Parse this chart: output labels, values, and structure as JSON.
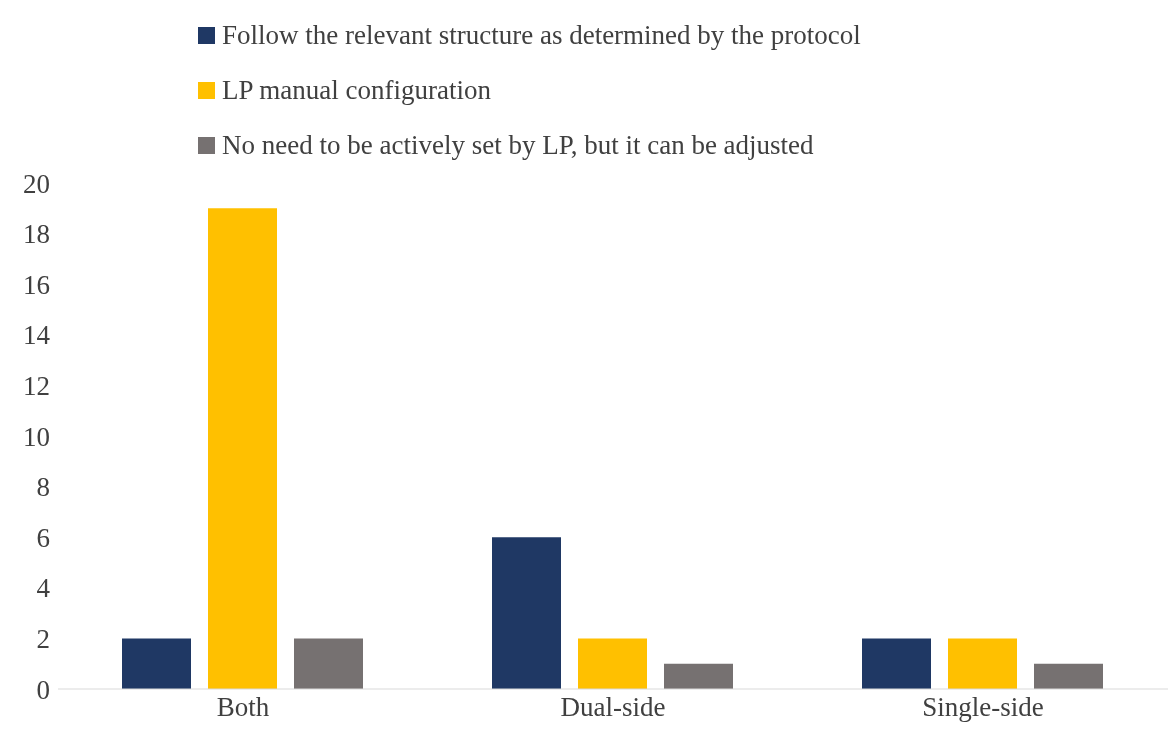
{
  "chart_data": {
    "type": "bar",
    "categories": [
      "Both",
      "Dual-side",
      "Single-side"
    ],
    "series": [
      {
        "name": "Follow the relevant structure as determined by the protocol",
        "color": "#1f3864",
        "values": [
          2,
          6,
          2
        ]
      },
      {
        "name": "LP manual configuration",
        "color": "#ffc000",
        "values": [
          19,
          2,
          2
        ]
      },
      {
        "name": "No need to be actively set by LP, but it can be adjusted",
        "color": "#767171",
        "values": [
          2,
          1,
          1
        ]
      }
    ],
    "ylim": [
      0,
      20
    ],
    "yticks": [
      0,
      2,
      4,
      6,
      8,
      10,
      12,
      14,
      16,
      18,
      20
    ],
    "grid": false,
    "legend": "top"
  }
}
